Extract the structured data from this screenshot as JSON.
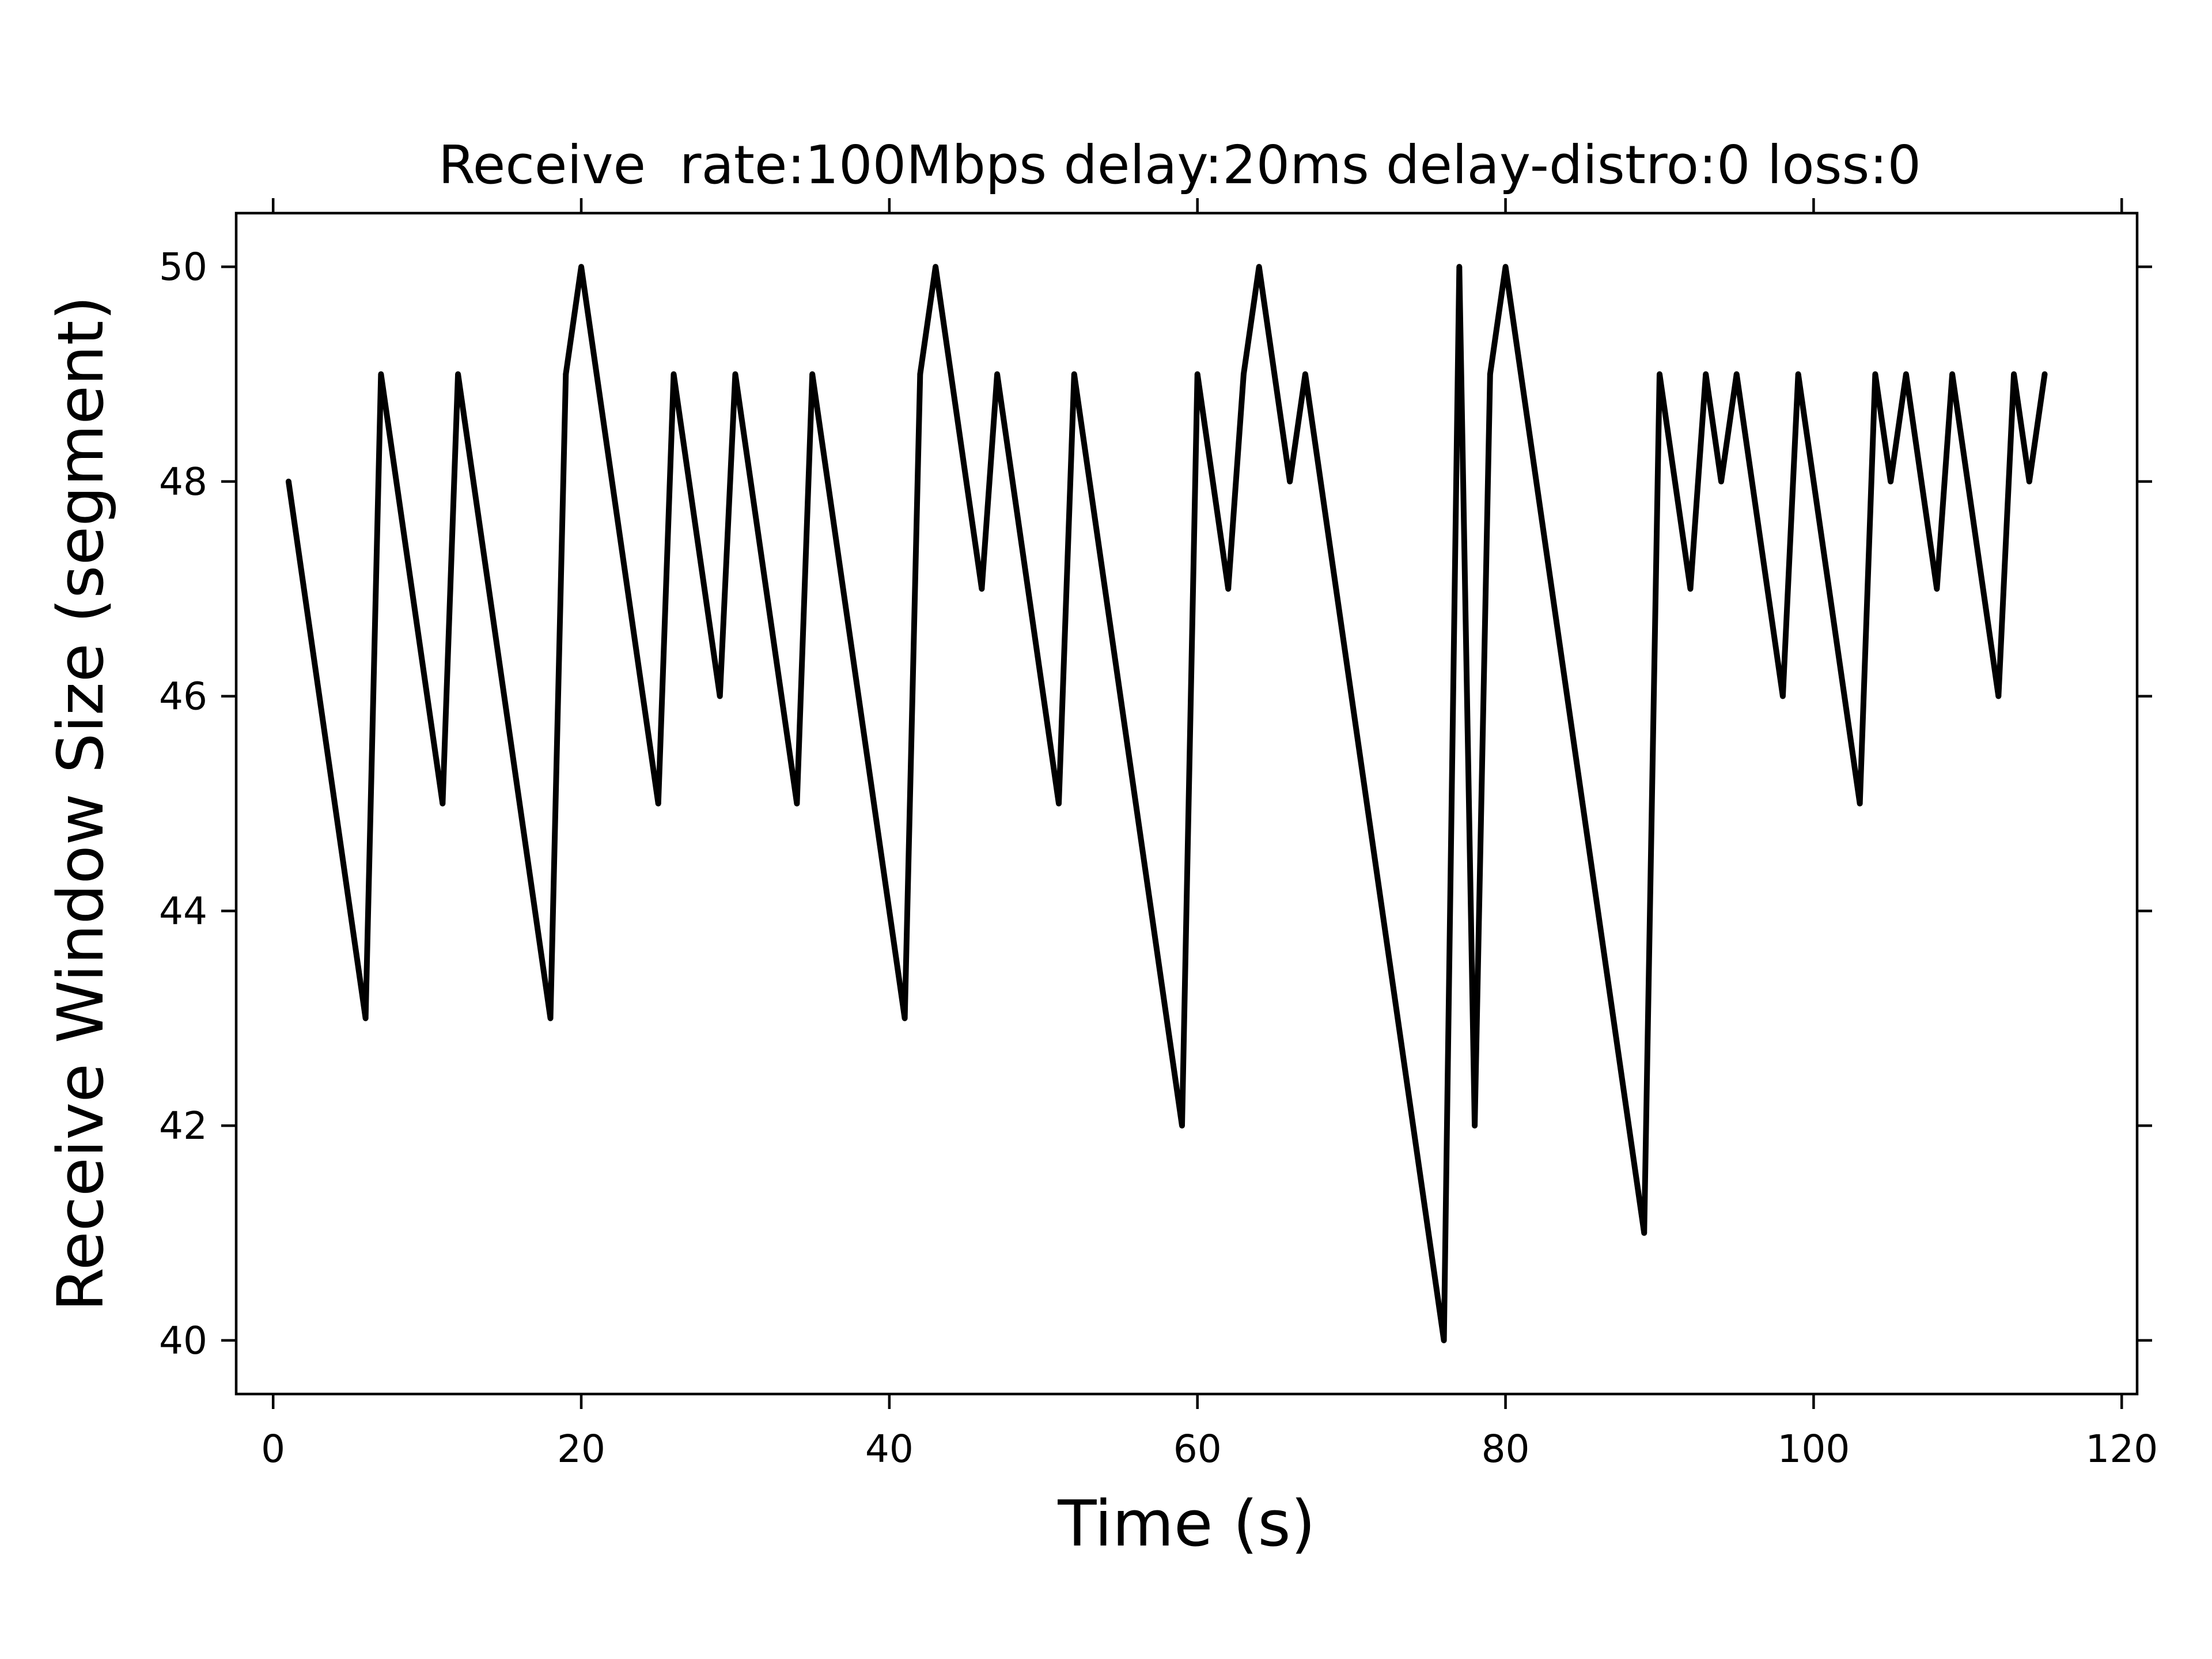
{
  "chart_data": {
    "type": "line",
    "title": "Receive  rate:100Mbps delay:20ms delay-distro:0 loss:0",
    "xlabel": "Time (s)",
    "ylabel": "Receive Window Size (segment)",
    "xlim": [
      -2.4,
      121.0
    ],
    "ylim": [
      39.5,
      50.5
    ],
    "xticks": [
      0,
      20,
      40,
      60,
      80,
      100,
      120
    ],
    "yticks": [
      40,
      42,
      44,
      46,
      48,
      50
    ],
    "grid": false,
    "colors": {
      "line": "#000000"
    },
    "series": [
      {
        "x": [
          1,
          6,
          7,
          11,
          12,
          18,
          19,
          20,
          25,
          26,
          29,
          30,
          34,
          35,
          41,
          42,
          43,
          46,
          47,
          51,
          52,
          59,
          60,
          62,
          63,
          64,
          66,
          67,
          76,
          77,
          78,
          79,
          80,
          89,
          90,
          92,
          93,
          94,
          95,
          98,
          99,
          103,
          104,
          105,
          106,
          108,
          109,
          112,
          113,
          114,
          115
        ],
        "values": [
          48,
          43,
          49,
          45,
          49,
          43,
          49,
          50,
          45,
          49,
          46,
          49,
          45,
          49,
          43,
          49,
          50,
          47,
          49,
          45,
          49,
          42,
          49,
          47,
          49,
          50,
          48,
          49,
          40,
          50,
          42,
          49,
          50,
          41,
          49,
          47,
          49,
          48,
          49,
          46,
          49,
          45,
          49,
          48,
          49,
          47,
          49,
          46,
          49,
          48,
          49
        ]
      }
    ]
  }
}
